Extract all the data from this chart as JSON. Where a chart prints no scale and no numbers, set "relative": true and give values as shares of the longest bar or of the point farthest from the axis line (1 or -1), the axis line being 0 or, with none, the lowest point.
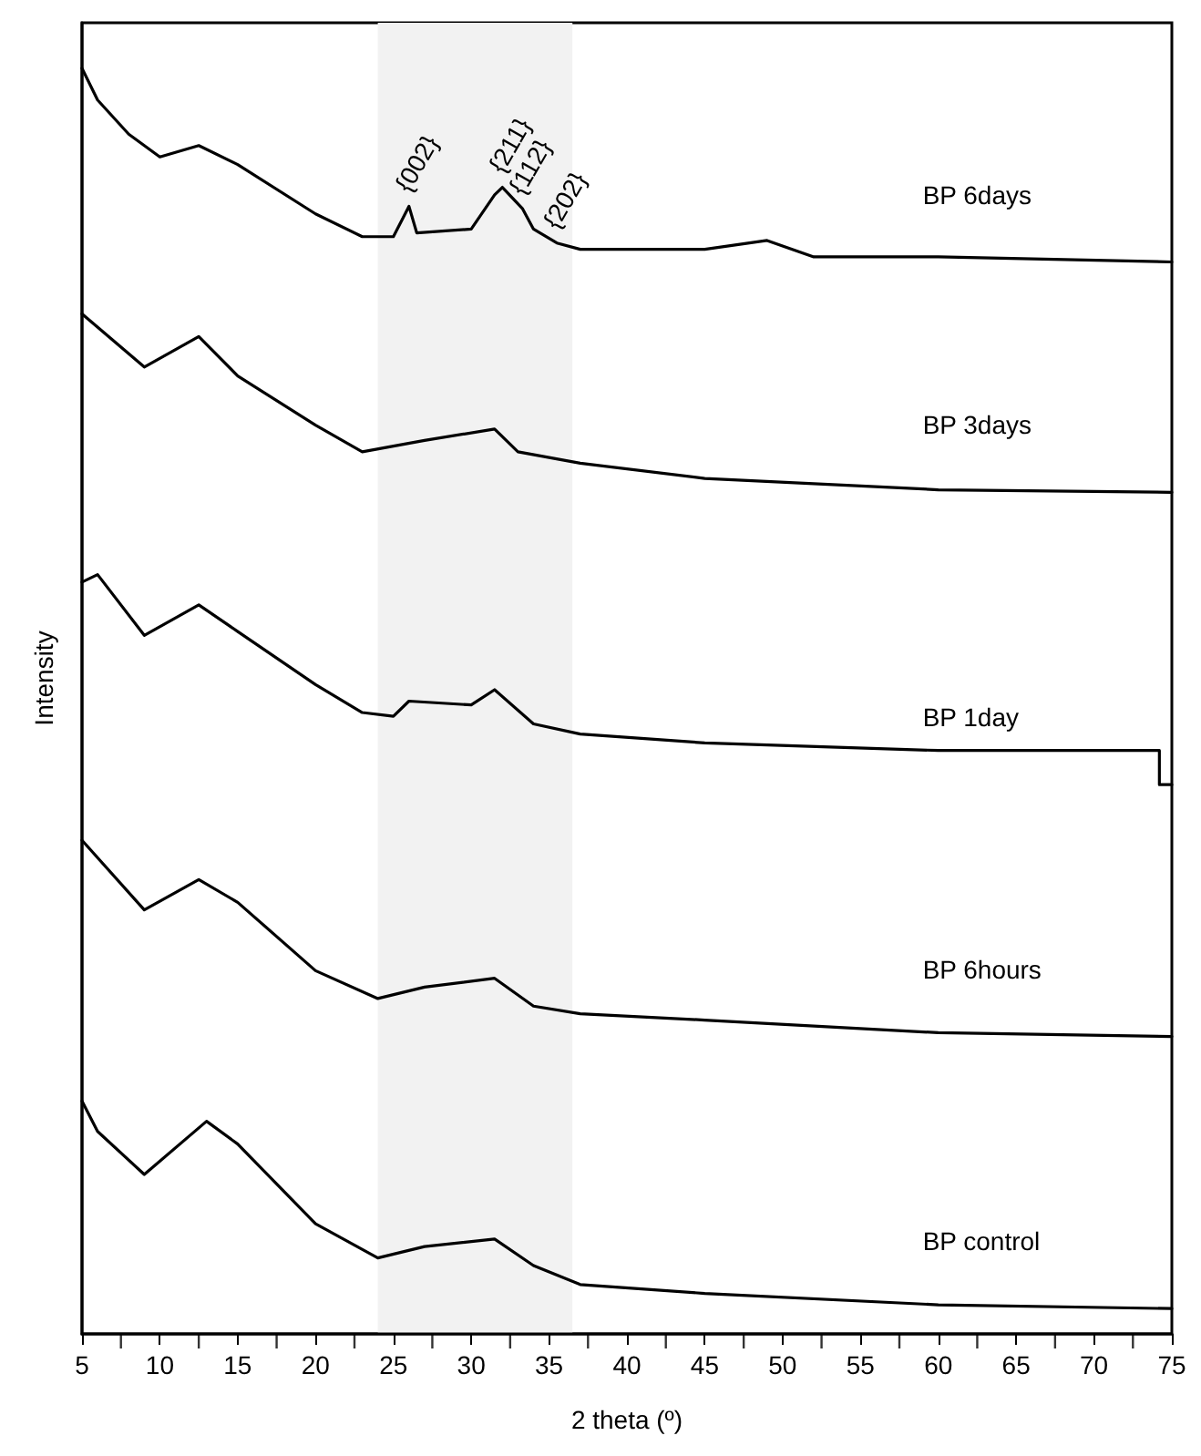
{
  "chart_data": {
    "type": "line",
    "relative": true,
    "xlabel": "2 theta (º)",
    "ylabel": "Intensity",
    "xlim": [
      5,
      75
    ],
    "xticks": [
      5,
      10,
      15,
      20,
      25,
      30,
      35,
      40,
      45,
      50,
      55,
      60,
      65,
      70,
      75
    ],
    "grid": false,
    "legend": false,
    "marker": "none",
    "line_style": "solid",
    "bands": [
      {
        "axis": "x",
        "from": 24,
        "to": 36.5,
        "color": "#f2f2f2"
      }
    ],
    "annotations": [
      {
        "text": "{002}",
        "x": 26,
        "y": 0.891
      },
      {
        "text": "{211}",
        "x": 32,
        "y": 0.906
      },
      {
        "text": "{112}",
        "x": 33.3,
        "y": 0.889
      },
      {
        "text": "{202}",
        "x": 35.5,
        "y": 0.862
      }
    ],
    "series": [
      {
        "name": "BP 6days",
        "color": "#000000",
        "x": [
          5,
          6,
          8,
          10,
          12.5,
          15,
          20,
          23,
          25,
          26,
          26.5,
          30,
          31.5,
          32,
          33.3,
          34,
          35.5,
          37,
          45,
          49,
          52,
          60,
          75
        ],
        "values": [
          1.0,
          0.975,
          0.948,
          0.93,
          0.939,
          0.924,
          0.885,
          0.867,
          0.867,
          0.891,
          0.87,
          0.873,
          0.9,
          0.906,
          0.889,
          0.873,
          0.862,
          0.857,
          0.857,
          0.864,
          0.851,
          0.851,
          0.847
        ]
      },
      {
        "name": "BP 3days",
        "color": "#000000",
        "x": [
          5,
          9,
          12.5,
          15,
          20,
          23,
          27,
          31.5,
          33,
          37,
          45,
          60,
          75
        ],
        "values": [
          0.806,
          0.764,
          0.788,
          0.757,
          0.718,
          0.697,
          0.706,
          0.715,
          0.697,
          0.688,
          0.676,
          0.667,
          0.665
        ]
      },
      {
        "name": "BP 1day",
        "color": "#000000",
        "x": [
          5,
          6,
          9,
          12.5,
          15,
          20,
          23,
          25,
          26,
          30,
          31.5,
          34,
          37,
          45,
          60,
          74.2,
          74.2,
          75
        ],
        "values": [
          0.594,
          0.6,
          0.552,
          0.576,
          0.555,
          0.513,
          0.491,
          0.488,
          0.5,
          0.497,
          0.509,
          0.482,
          0.474,
          0.467,
          0.461,
          0.461,
          0.434,
          0.434
        ]
      },
      {
        "name": "BP 6hours",
        "color": "#000000",
        "x": [
          5,
          9,
          12.5,
          15,
          20,
          24,
          27,
          31.5,
          34,
          37,
          45,
          60,
          75
        ],
        "values": [
          0.39,
          0.335,
          0.359,
          0.341,
          0.287,
          0.265,
          0.274,
          0.281,
          0.259,
          0.253,
          0.248,
          0.238,
          0.235
        ]
      },
      {
        "name": "BP control",
        "color": "#000000",
        "x": [
          5,
          6,
          9,
          13,
          15,
          20,
          24,
          27,
          31.5,
          34,
          37,
          45,
          60,
          75
        ],
        "values": [
          0.184,
          0.16,
          0.126,
          0.168,
          0.15,
          0.087,
          0.06,
          0.069,
          0.075,
          0.054,
          0.039,
          0.032,
          0.023,
          0.02
        ]
      }
    ]
  }
}
